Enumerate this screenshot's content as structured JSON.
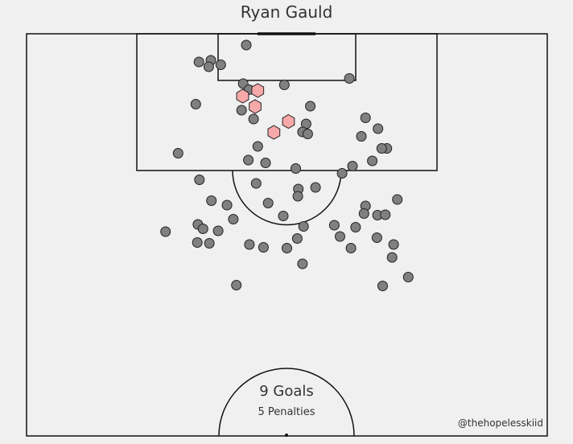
{
  "title": "Ryan Gauld",
  "summary": {
    "goals_label": "9 Goals",
    "penalties_label": "5 Penalties"
  },
  "credit": "@thehopelesskiid",
  "colors": {
    "background": "#f0f0f0",
    "lines": "#111111",
    "shot_fill": "#808080",
    "goal_fill": "#f7a9a9"
  },
  "chart_data": {
    "type": "scatter",
    "pitch": "half-pitch shot map",
    "x_range": [
      0,
      100
    ],
    "y_range": [
      0,
      100
    ],
    "series": [
      {
        "marker": "circle",
        "points": [
          [
            42.2,
            97.2
          ],
          [
            33.1,
            93.0
          ],
          [
            35.4,
            93.4
          ],
          [
            37.3,
            92.3
          ],
          [
            35.0,
            91.8
          ],
          [
            62.0,
            88.9
          ],
          [
            41.6,
            87.6
          ],
          [
            49.5,
            87.3
          ],
          [
            42.7,
            86.1
          ],
          [
            32.5,
            82.5
          ],
          [
            41.3,
            81.0
          ],
          [
            54.5,
            82.0
          ],
          [
            43.6,
            78.8
          ],
          [
            65.1,
            79.1
          ],
          [
            53.7,
            77.6
          ],
          [
            53.0,
            75.6
          ],
          [
            54.0,
            75.1
          ],
          [
            64.3,
            74.5
          ],
          [
            67.5,
            76.4
          ],
          [
            69.2,
            71.5
          ],
          [
            68.2,
            71.5
          ],
          [
            44.4,
            72.0
          ],
          [
            42.6,
            68.6
          ],
          [
            45.9,
            67.9
          ],
          [
            29.1,
            70.3
          ],
          [
            51.7,
            66.5
          ],
          [
            66.4,
            68.4
          ],
          [
            62.6,
            67.1
          ],
          [
            60.6,
            65.3
          ],
          [
            33.2,
            63.7
          ],
          [
            44.1,
            62.8
          ],
          [
            52.2,
            61.4
          ],
          [
            55.5,
            61.8
          ],
          [
            52.1,
            59.6
          ],
          [
            35.5,
            58.5
          ],
          [
            71.2,
            58.8
          ],
          [
            38.5,
            57.4
          ],
          [
            46.4,
            57.9
          ],
          [
            65.1,
            57.2
          ],
          [
            64.8,
            55.3
          ],
          [
            67.4,
            54.9
          ],
          [
            68.9,
            55.0
          ],
          [
            49.3,
            54.7
          ],
          [
            39.7,
            53.9
          ],
          [
            32.9,
            52.6
          ],
          [
            53.2,
            52.1
          ],
          [
            59.1,
            52.4
          ],
          [
            63.2,
            51.9
          ],
          [
            36.8,
            51.0
          ],
          [
            33.9,
            51.5
          ],
          [
            26.7,
            50.8
          ],
          [
            60.2,
            49.6
          ],
          [
            52.0,
            49.1
          ],
          [
            67.3,
            49.3
          ],
          [
            32.8,
            48.1
          ],
          [
            35.1,
            47.9
          ],
          [
            42.8,
            47.6
          ],
          [
            70.5,
            47.6
          ],
          [
            45.5,
            46.9
          ],
          [
            50.0,
            46.7
          ],
          [
            62.3,
            46.7
          ],
          [
            70.2,
            44.4
          ],
          [
            53.0,
            42.8
          ],
          [
            73.3,
            39.5
          ],
          [
            40.3,
            37.5
          ],
          [
            68.4,
            37.3
          ]
        ]
      },
      {
        "name": "9 Goals",
        "marker": "hexagon",
        "points": [
          [
            44.4,
            85.9
          ],
          [
            41.5,
            84.5
          ],
          [
            43.9,
            81.9
          ],
          [
            50.3,
            78.2
          ],
          [
            47.5,
            75.5
          ]
        ]
      }
    ]
  }
}
